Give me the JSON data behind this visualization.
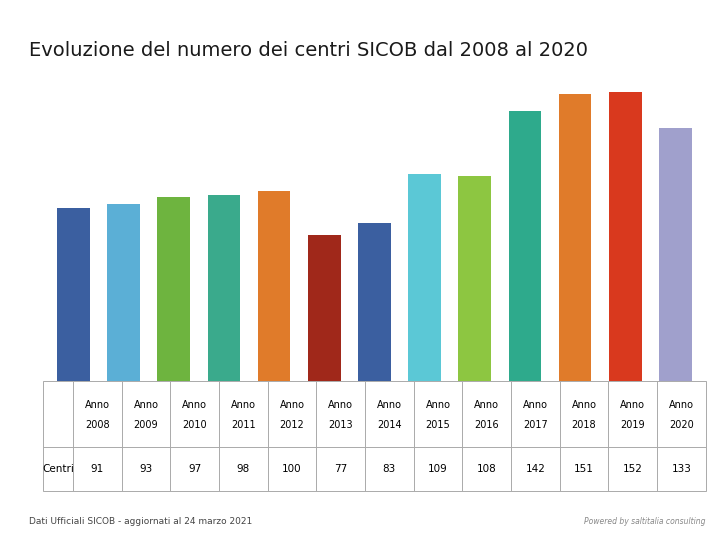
{
  "title": "Evoluzione del numero dei centri SICOB dal 2008 al 2020",
  "years": [
    "Anno\n2008",
    "Anno\n2009",
    "Anno\n2010",
    "Anno\n2011",
    "Anno\n2012",
    "Anno\n2013",
    "Anno\n2014",
    "Anno\n2015",
    "Anno\n2016",
    "Anno\n2017",
    "Anno\n2018",
    "Anno\n2019",
    "Anno\n2020"
  ],
  "values": [
    91,
    93,
    97,
    98,
    100,
    77,
    83,
    109,
    108,
    142,
    151,
    152,
    133
  ],
  "bar_colors": [
    "#3b5fa0",
    "#5bafd6",
    "#6eb43f",
    "#3aaa8c",
    "#e07b2a",
    "#a0281a",
    "#3b5fa0",
    "#5bc8d6",
    "#8dc641",
    "#2eaa8c",
    "#e07b2a",
    "#d9391e",
    "#a0a0cc"
  ],
  "header_color": "#5b6bbf",
  "background_color": "#ffffff",
  "footer_text": "Dati Ufficiali SICOB - aggiornati al 24 marzo 2021",
  "centri_label": "Centri",
  "title_fontsize": 14,
  "powered_text": "Powered by saltitalia consulting"
}
